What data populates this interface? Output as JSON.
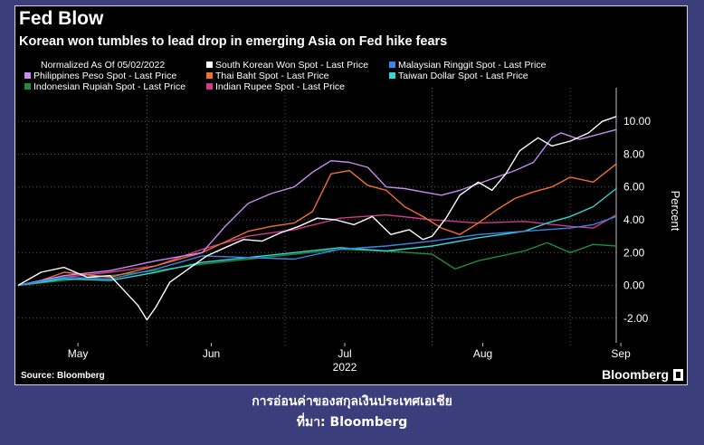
{
  "header": {
    "title": "Fed Blow",
    "subtitle": "Korean won tumbles to lead drop in emerging Asia on Fed hike fears"
  },
  "footer": {
    "source": "Source: Bloomberg",
    "brand": "Bloomberg"
  },
  "caption": {
    "line1": "การอ่อนค่าของสกุลเงินประเทศเอเชีย",
    "line2": "ที่มา: Bloomberg"
  },
  "chart_data": {
    "type": "line",
    "legend_note": "Normalized As Of 05/02/2022",
    "ylabel": "Percent",
    "ylim": [
      -3.5,
      11.5
    ],
    "y_ticks": [
      "-2.00",
      "0.00",
      "2.00",
      "4.00",
      "6.00",
      "8.00",
      "10.00"
    ],
    "y_tick_values": [
      -2,
      0,
      2,
      4,
      6,
      8,
      10
    ],
    "x_range": [
      0,
      130
    ],
    "x_ticks": [
      {
        "label": "May",
        "x": 13
      },
      {
        "label": "Jun",
        "x": 42
      },
      {
        "label": "Jul",
        "x": 71
      },
      {
        "label": "Aug",
        "x": 101
      },
      {
        "label": "Sep",
        "x": 131
      }
    ],
    "x_year": "2022",
    "month_boundaries": [
      28,
      58,
      90,
      120
    ],
    "grid": "horizontal dotted",
    "legend_position": "top",
    "series": [
      {
        "name": "South Korean Won Spot - Last Price",
        "color": "#ffffff",
        "x": [
          0,
          5,
          10,
          15,
          20,
          26,
          28,
          30,
          33,
          37,
          41,
          45,
          49,
          53,
          57,
          61,
          65,
          69,
          73,
          77,
          81,
          85,
          88,
          90,
          93,
          96,
          100,
          103,
          106,
          109,
          113,
          116,
          120,
          124,
          127,
          130
        ],
        "y": [
          0,
          0.8,
          1.1,
          0.5,
          0.6,
          -1.2,
          -2.1,
          -1.3,
          0.2,
          1.0,
          1.8,
          2.3,
          2.8,
          2.7,
          3.2,
          3.6,
          4.1,
          4.0,
          3.7,
          4.2,
          3.1,
          3.4,
          2.8,
          3.0,
          4.1,
          5.5,
          6.3,
          5.8,
          6.8,
          8.2,
          9.0,
          8.5,
          8.8,
          9.3,
          10.0,
          10.3
        ]
      },
      {
        "name": "Malaysian Ringgit Spot - Last Price",
        "color": "#3a86e8",
        "x": [
          0,
          10,
          20,
          30,
          40,
          50,
          60,
          70,
          80,
          90,
          100,
          110,
          120,
          125,
          130
        ],
        "y": [
          0,
          0.5,
          0.4,
          1.0,
          1.8,
          1.7,
          1.6,
          2.2,
          2.4,
          2.7,
          3.1,
          3.3,
          3.5,
          3.7,
          4.2
        ]
      },
      {
        "name": "Philippines Peso Spot - Last Price",
        "color": "#c78cf2",
        "x": [
          0,
          10,
          20,
          30,
          40,
          45,
          50,
          55,
          60,
          64,
          68,
          72,
          76,
          80,
          84,
          88,
          92,
          96,
          100,
          104,
          108,
          112,
          116,
          118,
          122,
          126,
          130
        ],
        "y": [
          0,
          0.6,
          0.9,
          1.5,
          2.0,
          3.6,
          5.0,
          5.6,
          6.0,
          6.9,
          7.6,
          7.5,
          7.2,
          6.0,
          5.9,
          5.7,
          5.5,
          5.8,
          6.2,
          6.6,
          7.0,
          7.5,
          9.0,
          9.3,
          8.9,
          9.2,
          9.5
        ]
      },
      {
        "name": "Thai Baht Spot - Last Price",
        "color": "#f07030",
        "x": [
          0,
          5,
          10,
          20,
          30,
          40,
          50,
          55,
          60,
          64,
          68,
          72,
          76,
          80,
          84,
          88,
          92,
          96,
          100,
          104,
          108,
          112,
          116,
          120,
          125,
          130
        ],
        "y": [
          0,
          0.3,
          0.8,
          0.5,
          1.2,
          2.0,
          3.3,
          3.6,
          3.8,
          4.5,
          6.8,
          7.0,
          6.1,
          5.8,
          4.8,
          4.2,
          3.5,
          3.1,
          3.8,
          4.6,
          5.3,
          5.7,
          6.0,
          6.6,
          6.3,
          7.4
        ]
      },
      {
        "name": "Taiwan Dollar Spot - Last Price",
        "color": "#35d6d6",
        "x": [
          0,
          10,
          20,
          30,
          40,
          50,
          60,
          70,
          80,
          90,
          100,
          110,
          115,
          120,
          125,
          130
        ],
        "y": [
          0,
          0.4,
          0.3,
          0.8,
          1.4,
          1.7,
          2.0,
          2.3,
          2.1,
          2.4,
          2.9,
          3.3,
          3.8,
          4.2,
          4.8,
          5.9
        ]
      },
      {
        "name": "Indonesian Rupiah Spot - Last Price",
        "color": "#1e8c3a",
        "x": [
          0,
          10,
          20,
          30,
          40,
          50,
          60,
          70,
          80,
          90,
          95,
          100,
          105,
          110,
          115,
          120,
          125,
          130
        ],
        "y": [
          0,
          0.3,
          0.6,
          0.9,
          1.3,
          1.6,
          1.9,
          2.2,
          2.1,
          1.9,
          1.0,
          1.5,
          1.8,
          2.1,
          2.6,
          2.0,
          2.5,
          2.4
        ]
      },
      {
        "name": "Indian Rupee Spot - Last Price",
        "color": "#d23a8c",
        "x": [
          0,
          10,
          20,
          30,
          40,
          50,
          60,
          70,
          80,
          90,
          100,
          110,
          120,
          125,
          130
        ],
        "y": [
          0,
          0.5,
          0.8,
          1.2,
          2.2,
          3.0,
          3.4,
          4.1,
          4.3,
          4.0,
          3.8,
          3.9,
          3.6,
          3.5,
          4.3
        ]
      }
    ]
  }
}
